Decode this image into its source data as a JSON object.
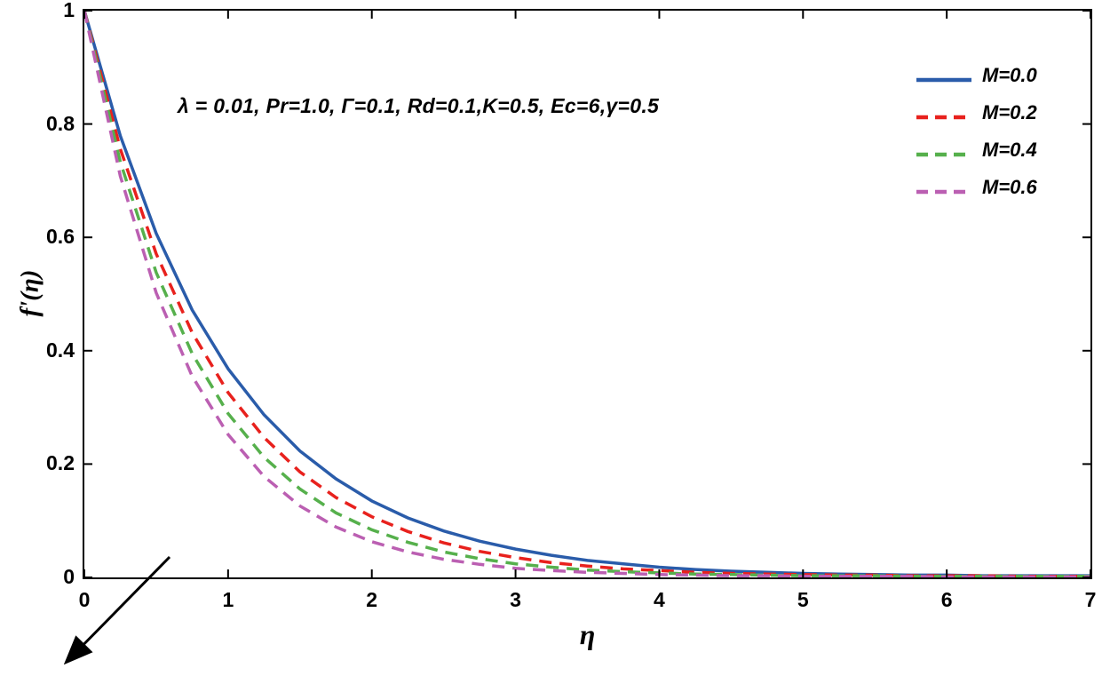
{
  "chart_data": {
    "type": "line",
    "title": "",
    "xlabel": "η",
    "ylabel": "f'(η)",
    "xlim": [
      0,
      7
    ],
    "ylim": [
      0,
      1
    ],
    "x_ticks": [
      0,
      1,
      2,
      3,
      4,
      5,
      6,
      7
    ],
    "y_ticks": [
      0,
      0.2,
      0.4,
      0.6,
      0.8,
      1
    ],
    "grid": false,
    "legend_position": "top-right",
    "background": "#ffffff",
    "axis_color": "#000000",
    "annotation": "λ = 0.01, Pr=1.0, Γ=0.1, Rd=0.1,K=0.5, Ec=6,γ=0.5",
    "annotation_arrow": {
      "direction": "down-left",
      "color": "#000000"
    },
    "x": [
      0,
      0.25,
      0.5,
      0.75,
      1,
      1.25,
      1.5,
      1.75,
      2,
      2.25,
      2.5,
      2.75,
      3,
      3.25,
      3.5,
      3.75,
      4,
      4.25,
      4.5,
      4.75,
      5,
      5.25,
      5.5,
      5.75,
      6,
      6.25,
      6.5,
      6.75,
      7
    ],
    "series": [
      {
        "name": "M=0.0",
        "color": "#2a5caa",
        "style": "solid",
        "values": [
          1,
          0.779,
          0.607,
          0.472,
          0.368,
          0.287,
          0.223,
          0.174,
          0.135,
          0.105,
          0.082,
          0.064,
          0.05,
          0.039,
          0.03,
          0.024,
          0.018,
          0.014,
          0.011,
          0.009,
          0.007,
          0.006,
          0.005,
          0.004,
          0.004,
          0.003,
          0.003,
          0.003,
          0.003
        ]
      },
      {
        "name": "M=0.2",
        "color": "#e8211d",
        "style": "dashed",
        "values": [
          1,
          0.756,
          0.571,
          0.432,
          0.326,
          0.247,
          0.186,
          0.141,
          0.107,
          0.081,
          0.061,
          0.046,
          0.035,
          0.026,
          0.02,
          0.015,
          0.012,
          0.009,
          0.007,
          0.006,
          0.005,
          0.004,
          0.004,
          0.003,
          0.003,
          0.003,
          0.002,
          0.002,
          0.002
        ]
      },
      {
        "name": "M=0.4",
        "color": "#56b04c",
        "style": "dashed",
        "values": [
          1,
          0.733,
          0.538,
          0.395,
          0.289,
          0.212,
          0.156,
          0.114,
          0.084,
          0.062,
          0.045,
          0.033,
          0.024,
          0.018,
          0.013,
          0.01,
          0.008,
          0.006,
          0.005,
          0.004,
          0.003,
          0.003,
          0.003,
          0.002,
          0.002,
          0.002,
          0.002,
          0.002,
          0.002
        ]
      },
      {
        "name": "M=0.6",
        "color": "#bb5fb2",
        "style": "dashed",
        "values": [
          1,
          0.708,
          0.502,
          0.355,
          0.252,
          0.178,
          0.126,
          0.089,
          0.063,
          0.045,
          0.032,
          0.023,
          0.016,
          0.012,
          0.009,
          0.007,
          0.005,
          0.004,
          0.003,
          0.003,
          0.002,
          0.002,
          0.002,
          0.002,
          0.001,
          0.001,
          0.001,
          0.001,
          0.001
        ]
      }
    ]
  }
}
